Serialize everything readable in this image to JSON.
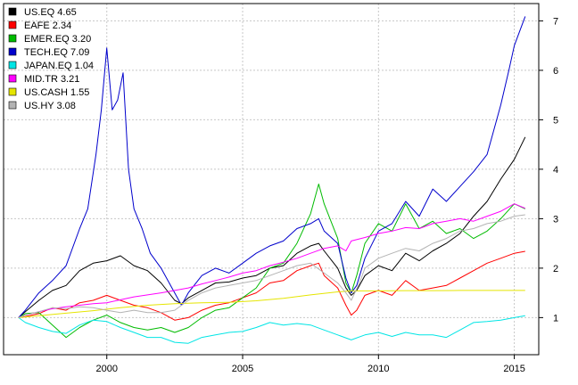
{
  "chart_data": {
    "type": "line",
    "title": "",
    "xlabel": "",
    "ylabel": "",
    "xlim": [
      1996.2,
      2015.9
    ],
    "ylim": [
      0.25,
      7.35
    ],
    "grid": true,
    "legend_position": "top-left",
    "x_ticks": [
      2000,
      2005,
      2010,
      2015
    ],
    "x_tick_labels": [
      "2000",
      "2005",
      "2010",
      "2015"
    ],
    "y_ticks": [
      1,
      2,
      3,
      4,
      5,
      6,
      7
    ],
    "y_tick_labels": [
      "1",
      "2",
      "3",
      "4",
      "5",
      "6",
      "7"
    ],
    "series": [
      {
        "name": "US.EQ",
        "legend_label": "US.EQ 4.65",
        "color": "#000000",
        "x": [
          1996.75,
          1997.0,
          1997.5,
          1998.0,
          1998.5,
          1999.0,
          1999.5,
          2000.0,
          2000.5,
          2001.0,
          2001.5,
          2002.0,
          2002.5,
          2002.75,
          2003.0,
          2003.5,
          2004.0,
          2004.5,
          2005.0,
          2005.5,
          2006.0,
          2006.5,
          2007.0,
          2007.5,
          2007.8,
          2008.0,
          2008.5,
          2008.8,
          2009.0,
          2009.2,
          2009.5,
          2010.0,
          2010.5,
          2011.0,
          2011.5,
          2012.0,
          2012.5,
          2013.0,
          2013.5,
          2014.0,
          2014.5,
          2015.0,
          2015.4
        ],
        "values": [
          1.0,
          1.12,
          1.35,
          1.55,
          1.65,
          1.95,
          2.1,
          2.15,
          2.25,
          2.05,
          1.95,
          1.7,
          1.35,
          1.28,
          1.4,
          1.55,
          1.7,
          1.72,
          1.8,
          1.85,
          2.0,
          2.05,
          2.3,
          2.45,
          2.5,
          2.35,
          2.0,
          1.6,
          1.45,
          1.55,
          1.85,
          2.05,
          1.95,
          2.3,
          2.15,
          2.35,
          2.5,
          2.7,
          3.05,
          3.35,
          3.8,
          4.2,
          4.65
        ]
      },
      {
        "name": "EAFE",
        "legend_label": "EAFE 2.34",
        "color": "#ff0000",
        "x": [
          1996.75,
          1997.0,
          1997.5,
          1998.0,
          1998.5,
          1999.0,
          1999.5,
          2000.0,
          2000.5,
          2001.0,
          2001.5,
          2002.0,
          2002.5,
          2003.0,
          2003.5,
          2004.0,
          2004.5,
          2005.0,
          2005.5,
          2006.0,
          2006.5,
          2007.0,
          2007.5,
          2007.8,
          2008.0,
          2008.5,
          2008.8,
          2009.0,
          2009.2,
          2009.5,
          2010.0,
          2010.5,
          2011.0,
          2011.5,
          2012.0,
          2012.5,
          2013.0,
          2013.5,
          2014.0,
          2014.5,
          2015.0,
          2015.4
        ],
        "values": [
          1.0,
          1.02,
          1.08,
          1.2,
          1.15,
          1.3,
          1.35,
          1.45,
          1.35,
          1.25,
          1.2,
          1.1,
          0.95,
          1.0,
          1.15,
          1.25,
          1.3,
          1.4,
          1.5,
          1.7,
          1.75,
          1.95,
          2.05,
          2.1,
          1.85,
          1.6,
          1.25,
          1.05,
          1.15,
          1.45,
          1.55,
          1.45,
          1.75,
          1.55,
          1.6,
          1.65,
          1.8,
          1.95,
          2.1,
          2.2,
          2.3,
          2.34
        ]
      },
      {
        "name": "EMER.EQ",
        "legend_label": "EMER.EQ 3.20",
        "color": "#00bb00",
        "x": [
          1996.75,
          1997.0,
          1997.5,
          1998.0,
          1998.5,
          1999.0,
          1999.5,
          2000.0,
          2000.5,
          2001.0,
          2001.5,
          2002.0,
          2002.5,
          2003.0,
          2003.5,
          2004.0,
          2004.5,
          2005.0,
          2005.5,
          2006.0,
          2006.5,
          2007.0,
          2007.5,
          2007.8,
          2008.0,
          2008.5,
          2008.8,
          2009.0,
          2009.2,
          2009.5,
          2010.0,
          2010.5,
          2011.0,
          2011.5,
          2012.0,
          2012.5,
          2013.0,
          2013.5,
          2014.0,
          2014.5,
          2015.0,
          2015.4
        ],
        "values": [
          1.0,
          1.08,
          1.1,
          0.85,
          0.6,
          0.8,
          0.95,
          1.05,
          0.9,
          0.8,
          0.75,
          0.8,
          0.7,
          0.8,
          1.0,
          1.15,
          1.2,
          1.4,
          1.6,
          2.0,
          2.1,
          2.5,
          3.1,
          3.7,
          3.3,
          2.6,
          1.7,
          1.5,
          1.85,
          2.5,
          2.9,
          2.75,
          3.3,
          2.8,
          2.95,
          2.7,
          2.8,
          2.6,
          2.75,
          3.0,
          3.3,
          3.2
        ]
      },
      {
        "name": "TECH.EQ",
        "legend_label": "TECH.EQ 7.09",
        "color": "#0000cc",
        "x": [
          1996.75,
          1997.0,
          1997.5,
          1998.0,
          1998.5,
          1999.0,
          1999.3,
          1999.6,
          1999.8,
          2000.0,
          2000.2,
          2000.4,
          2000.6,
          2000.8,
          2001.0,
          2001.3,
          2001.6,
          2002.0,
          2002.4,
          2002.75,
          2003.0,
          2003.5,
          2004.0,
          2004.5,
          2005.0,
          2005.5,
          2006.0,
          2006.5,
          2007.0,
          2007.5,
          2007.8,
          2008.0,
          2008.5,
          2008.8,
          2009.0,
          2009.2,
          2009.5,
          2010.0,
          2010.5,
          2011.0,
          2011.5,
          2012.0,
          2012.5,
          2013.0,
          2013.5,
          2014.0,
          2014.5,
          2014.8,
          2015.0,
          2015.4
        ],
        "values": [
          1.0,
          1.15,
          1.5,
          1.75,
          2.05,
          2.8,
          3.2,
          4.3,
          5.2,
          6.45,
          5.2,
          5.4,
          5.95,
          4.0,
          3.2,
          2.8,
          2.3,
          2.0,
          1.6,
          1.25,
          1.5,
          1.85,
          2.0,
          1.9,
          2.1,
          2.3,
          2.45,
          2.55,
          2.8,
          2.9,
          3.0,
          2.75,
          2.5,
          1.8,
          1.5,
          1.65,
          2.2,
          2.75,
          2.9,
          3.35,
          3.05,
          3.6,
          3.35,
          3.65,
          3.95,
          4.3,
          5.3,
          6.0,
          6.5,
          7.09
        ]
      },
      {
        "name": "JAPAN.EQ",
        "legend_label": "JAPAN.EQ 1.04",
        "color": "#00e5e5",
        "x": [
          1996.75,
          1997.0,
          1997.5,
          1998.0,
          1998.5,
          1999.0,
          1999.5,
          2000.0,
          2000.5,
          2001.0,
          2001.5,
          2002.0,
          2002.5,
          2003.0,
          2003.5,
          2004.0,
          2004.5,
          2005.0,
          2005.5,
          2006.0,
          2006.5,
          2007.0,
          2007.5,
          2008.0,
          2008.5,
          2009.0,
          2009.5,
          2010.0,
          2010.5,
          2011.0,
          2011.5,
          2012.0,
          2012.5,
          2013.0,
          2013.5,
          2014.0,
          2014.5,
          2015.0,
          2015.4
        ],
        "values": [
          1.0,
          0.9,
          0.8,
          0.72,
          0.68,
          0.85,
          0.95,
          0.92,
          0.8,
          0.7,
          0.6,
          0.6,
          0.5,
          0.48,
          0.6,
          0.65,
          0.7,
          0.72,
          0.8,
          0.9,
          0.85,
          0.88,
          0.85,
          0.75,
          0.65,
          0.55,
          0.65,
          0.7,
          0.62,
          0.7,
          0.65,
          0.65,
          0.6,
          0.75,
          0.9,
          0.92,
          0.95,
          1.0,
          1.04
        ]
      },
      {
        "name": "MID.TR",
        "legend_label": "MID.TR 3.21",
        "color": "#ff00ff",
        "x": [
          1996.75,
          1997.0,
          1997.5,
          1998.0,
          1998.5,
          1999.0,
          1999.5,
          2000.0,
          2000.5,
          2001.0,
          2001.5,
          2002.0,
          2002.5,
          2003.0,
          2003.5,
          2004.0,
          2004.5,
          2005.0,
          2005.5,
          2006.0,
          2006.5,
          2007.0,
          2007.5,
          2008.0,
          2008.5,
          2008.8,
          2009.0,
          2009.5,
          2010.0,
          2010.5,
          2011.0,
          2011.5,
          2012.0,
          2012.5,
          2013.0,
          2013.5,
          2014.0,
          2014.5,
          2015.0,
          2015.4
        ],
        "values": [
          1.0,
          1.05,
          1.12,
          1.18,
          1.22,
          1.25,
          1.28,
          1.3,
          1.36,
          1.42,
          1.46,
          1.5,
          1.55,
          1.6,
          1.68,
          1.75,
          1.82,
          1.9,
          1.95,
          2.05,
          2.12,
          2.2,
          2.3,
          2.4,
          2.45,
          2.35,
          2.55,
          2.62,
          2.7,
          2.75,
          2.82,
          2.8,
          2.9,
          2.95,
          3.0,
          2.95,
          3.05,
          3.15,
          3.3,
          3.21
        ]
      },
      {
        "name": "US.CASH",
        "legend_label": "US.CASH 1.55",
        "color": "#e5e500",
        "x": [
          1996.75,
          1997.5,
          1998.5,
          1999.5,
          2000.5,
          2001.5,
          2002.5,
          2003.5,
          2004.5,
          2005.5,
          2006.5,
          2007.5,
          2008.5,
          2009.0,
          2010.0,
          2011.0,
          2012.0,
          2013.0,
          2014.0,
          2015.0,
          2015.4
        ],
        "values": [
          1.0,
          1.04,
          1.09,
          1.14,
          1.2,
          1.25,
          1.28,
          1.3,
          1.31,
          1.34,
          1.39,
          1.46,
          1.52,
          1.54,
          1.54,
          1.545,
          1.545,
          1.55,
          1.55,
          1.55,
          1.55
        ]
      },
      {
        "name": "US.HY",
        "legend_label": "US.HY 3.08",
        "color": "#b3b3b3",
        "x": [
          1996.75,
          1997.0,
          1997.5,
          1998.0,
          1998.5,
          1999.0,
          1999.5,
          2000.0,
          2000.5,
          2001.0,
          2001.5,
          2002.0,
          2002.5,
          2003.0,
          2003.5,
          2004.0,
          2004.5,
          2005.0,
          2005.5,
          2006.0,
          2006.5,
          2007.0,
          2007.5,
          2008.0,
          2008.5,
          2008.8,
          2009.0,
          2009.3,
          2009.5,
          2010.0,
          2010.5,
          2011.0,
          2011.5,
          2012.0,
          2012.5,
          2013.0,
          2013.5,
          2014.0,
          2014.5,
          2015.0,
          2015.4
        ],
        "values": [
          1.0,
          1.05,
          1.12,
          1.2,
          1.18,
          1.22,
          1.2,
          1.15,
          1.1,
          1.15,
          1.1,
          1.1,
          1.15,
          1.35,
          1.5,
          1.6,
          1.65,
          1.7,
          1.75,
          1.85,
          1.95,
          2.05,
          2.1,
          1.9,
          1.7,
          1.5,
          1.35,
          1.7,
          2.0,
          2.2,
          2.3,
          2.4,
          2.35,
          2.5,
          2.6,
          2.75,
          2.8,
          2.9,
          2.95,
          3.05,
          3.08
        ]
      }
    ]
  }
}
